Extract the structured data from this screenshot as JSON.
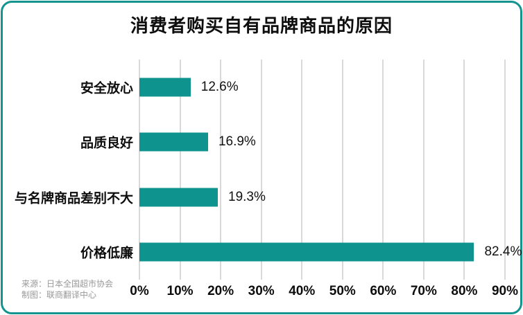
{
  "chart_data": {
    "type": "bar",
    "orientation": "horizontal",
    "title": "消费者购买自有品牌商品的原因",
    "categories": [
      "安全放心",
      "品质良好",
      "与名牌商品差别不大",
      "价格低廉"
    ],
    "values": [
      12.6,
      16.9,
      19.3,
      82.4
    ],
    "value_labels": [
      "12.6%",
      "16.9%",
      "19.3%",
      "82.4%"
    ],
    "xlabel": "",
    "ylabel": "",
    "xlim": [
      0,
      90
    ],
    "x_ticks": [
      "0%",
      "10%",
      "20%",
      "30%",
      "40%",
      "50%",
      "60%",
      "70%",
      "80%",
      "90%"
    ],
    "grid": true,
    "legend": false,
    "bar_color": "#0e938e"
  },
  "footer": {
    "source_line1": "来源：日本全国超市协会",
    "source_line2": "制图：联商翻译中心"
  },
  "colors": {
    "accent": "#0e938e",
    "card_border": "#13948f",
    "gridline": "#d9d9d9",
    "title_text": "#0d0d0d",
    "source_text": "#999999",
    "background": "#ffffff"
  }
}
